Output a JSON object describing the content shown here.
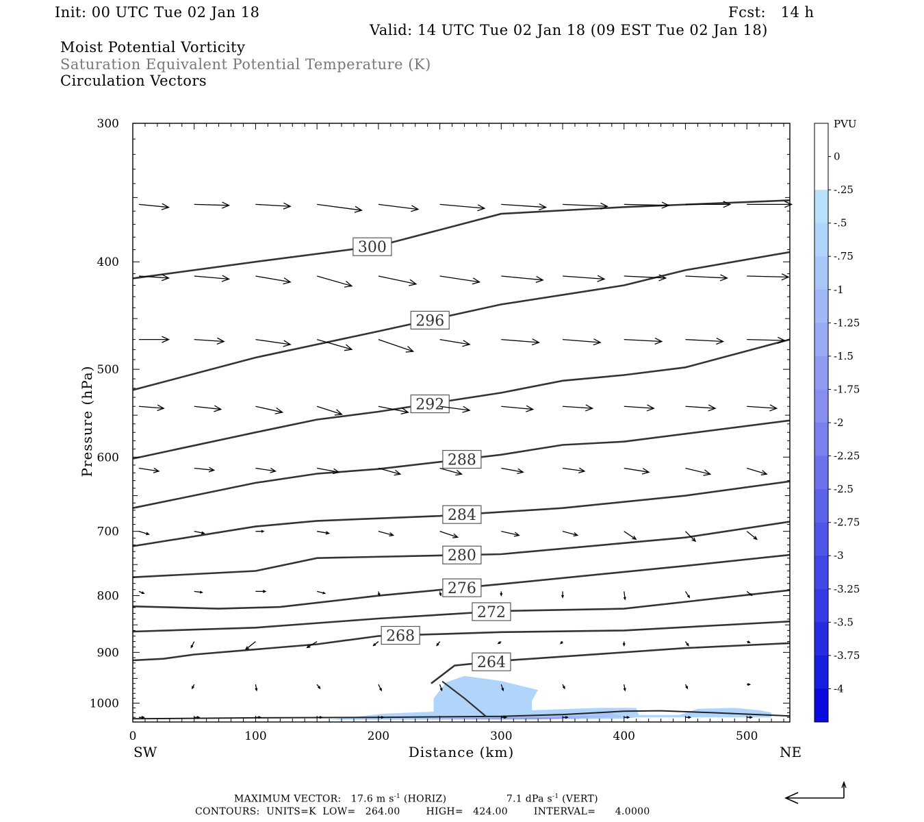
{
  "header": {
    "init": "Init: 00 UTC Tue 02 Jan 18",
    "fcst": "Fcst:   14 h",
    "valid": "Valid: 14 UTC Tue 02 Jan 18 (09 EST Tue 02 Jan 18)",
    "field1": "Moist Potential Vorticity",
    "field2": "Saturation Equivalent Potential Temperature (K)",
    "field3": "Circulation Vectors"
  },
  "footer": {
    "max_label": "MAXIMUM VECTOR:",
    "horiz_value": "17.6 m s",
    "horiz_unit": "(HORIZ)",
    "vert_value": "7.1 dPa s",
    "vert_unit": "(VERT)",
    "exp": "-1",
    "contours": "CONTOURS:  UNITS=K  LOW=   264.00        HIGH=   424.00        INTERVAL=      4.0000"
  },
  "chart_data": {
    "type": "cross-section",
    "xlabel": "Distance (km)",
    "ylabel": "Pressure (hPa)",
    "xlim": [
      0,
      535
    ],
    "ylim": [
      1040,
      300
    ],
    "yscale": "log",
    "x_ticks": [
      0,
      100,
      200,
      300,
      400,
      500
    ],
    "y_ticks": [
      300,
      400,
      500,
      600,
      700,
      800,
      900,
      1000
    ],
    "x_left_label": "SW",
    "x_right_label": "NE",
    "colorbar": {
      "title": "PVU",
      "levels": [
        "0",
        "-.25",
        "-.5",
        "-.75",
        "-1",
        "-1.25",
        "-1.5",
        "-1.75",
        "-2",
        "-2.25",
        "-2.5",
        "-2.75",
        "-3",
        "-3.25",
        "-3.5",
        "-3.75",
        "-4"
      ],
      "colors": [
        "#ffffff",
        "#ffffff",
        "#b8e2fb",
        "#b0d4fa",
        "#a8c6f8",
        "#a0b8f6",
        "#98aaf4",
        "#909cf2",
        "#888ef0",
        "#7a80ee",
        "#6c72ec",
        "#5e64ea",
        "#5056e8",
        "#4248e6",
        "#343ae4",
        "#262ce2",
        "#181ee0",
        "#0a0ade"
      ]
    },
    "theta_contours": [
      {
        "label": "300",
        "label_x": 195,
        "points": [
          [
            0,
            414
          ],
          [
            100,
            400
          ],
          [
            200,
            387
          ],
          [
            300,
            362
          ],
          [
            400,
            357
          ],
          [
            535,
            352
          ]
        ]
      },
      {
        "label": "296",
        "label_x": 242,
        "points": [
          [
            0,
            522
          ],
          [
            100,
            488
          ],
          [
            200,
            462
          ],
          [
            300,
            437
          ],
          [
            400,
            420
          ],
          [
            450,
            407
          ],
          [
            535,
            392
          ]
        ]
      },
      {
        "label": "292",
        "label_x": 242,
        "points": [
          [
            0,
            602
          ],
          [
            100,
            570
          ],
          [
            150,
            555
          ],
          [
            200,
            546
          ],
          [
            300,
            525
          ],
          [
            350,
            512
          ],
          [
            400,
            506
          ],
          [
            450,
            498
          ],
          [
            535,
            470
          ]
        ]
      },
      {
        "label": "288",
        "label_x": 268,
        "points": [
          [
            0,
            667
          ],
          [
            100,
            633
          ],
          [
            150,
            621
          ],
          [
            200,
            615
          ],
          [
            300,
            597
          ],
          [
            350,
            585
          ],
          [
            400,
            581
          ],
          [
            535,
            556
          ]
        ]
      },
      {
        "label": "284",
        "label_x": 268,
        "points": [
          [
            0,
            722
          ],
          [
            100,
            693
          ],
          [
            150,
            685
          ],
          [
            250,
            678
          ],
          [
            350,
            667
          ],
          [
            450,
            650
          ],
          [
            535,
            631
          ]
        ]
      },
      {
        "label": "280",
        "label_x": 268,
        "points": [
          [
            0,
            770
          ],
          [
            100,
            760
          ],
          [
            150,
            740
          ],
          [
            300,
            734
          ],
          [
            450,
            709
          ],
          [
            535,
            686
          ]
        ]
      },
      {
        "label": "276",
        "label_x": 268,
        "points": [
          [
            0,
            818
          ],
          [
            70,
            822
          ],
          [
            120,
            819
          ],
          [
            200,
            800
          ],
          [
            300,
            781
          ],
          [
            450,
            752
          ],
          [
            535,
            735
          ]
        ]
      },
      {
        "label": "272",
        "label_x": 292,
        "points": [
          [
            0,
            862
          ],
          [
            100,
            855
          ],
          [
            200,
            839
          ],
          [
            300,
            826
          ],
          [
            400,
            822
          ],
          [
            535,
            791
          ]
        ]
      },
      {
        "label": "268",
        "label_x": 218,
        "points": [
          [
            0,
            915
          ],
          [
            25,
            912
          ],
          [
            50,
            904
          ],
          [
            150,
            885
          ],
          [
            200,
            870
          ],
          [
            300,
            863
          ],
          [
            400,
            860
          ],
          [
            535,
            844
          ]
        ]
      },
      {
        "label": "264",
        "label_x": 292,
        "points": [
          [
            243,
            960
          ],
          [
            262,
            925
          ],
          [
            300,
            916
          ],
          [
            450,
            892
          ],
          [
            535,
            883
          ]
        ]
      }
    ],
    "theta_264_lower": [
      [
        252,
        956
      ],
      [
        270,
        990
      ],
      [
        288,
        1029
      ]
    ],
    "pv_regions": [
      {
        "level": "-.5",
        "points": [
          [
            160,
            1035
          ],
          [
            205,
            1022
          ],
          [
            245,
            1018
          ],
          [
            245,
            990
          ],
          [
            255,
            958
          ],
          [
            270,
            945
          ],
          [
            300,
            955
          ],
          [
            330,
            973
          ],
          [
            325,
            995
          ],
          [
            325,
            1015
          ],
          [
            380,
            1010
          ],
          [
            410,
            1010
          ],
          [
            412,
            1025
          ],
          [
            445,
            1025
          ],
          [
            460,
            1012
          ],
          [
            490,
            1010
          ],
          [
            510,
            1015
          ],
          [
            520,
            1020
          ],
          [
            520,
            1030
          ],
          [
            410,
            1030
          ],
          [
            400,
            1033
          ],
          [
            300,
            1035
          ],
          [
            160,
            1035
          ]
        ]
      },
      {
        "level": "-.75",
        "points": [
          [
            180,
            1035
          ],
          [
            250,
            1028
          ],
          [
            300,
            1026
          ],
          [
            350,
            1022
          ],
          [
            390,
            1020
          ],
          [
            400,
            1030
          ],
          [
            300,
            1033
          ],
          [
            180,
            1035
          ]
        ]
      },
      {
        "level": "-1.25",
        "points": [
          [
            240,
            1033
          ],
          [
            300,
            1030
          ],
          [
            360,
            1028
          ],
          [
            390,
            1029
          ],
          [
            300,
            1034
          ],
          [
            240,
            1033
          ]
        ]
      },
      {
        "level": "-1.75",
        "points": [
          [
            270,
            1034
          ],
          [
            330,
            1032
          ],
          [
            370,
            1031
          ],
          [
            330,
            1034
          ],
          [
            270,
            1034
          ]
        ]
      }
    ],
    "vectors": [
      {
        "p": 355,
        "xs": [
          5,
          50,
          100,
          150,
          200,
          250,
          300,
          350,
          400,
          450,
          500
        ],
        "u": [
          30,
          35,
          35,
          45,
          40,
          45,
          45,
          45,
          45,
          45,
          45
        ],
        "v": [
          3,
          1,
          2,
          6,
          5,
          4,
          3,
          2,
          1,
          0,
          0
        ]
      },
      {
        "p": 412,
        "xs": [
          5,
          50,
          100,
          150,
          200,
          250,
          300,
          350,
          400,
          450,
          500
        ],
        "u": [
          30,
          35,
          35,
          35,
          38,
          40,
          42,
          42,
          42,
          42,
          42
        ],
        "v": [
          2,
          3,
          6,
          10,
          8,
          6,
          4,
          3,
          2,
          2,
          1
        ]
      },
      {
        "p": 470,
        "xs": [
          5,
          50,
          100,
          150,
          200,
          250,
          300,
          350,
          400,
          450,
          500
        ],
        "u": [
          30,
          30,
          35,
          35,
          35,
          30,
          38,
          38,
          38,
          38,
          38
        ],
        "v": [
          0,
          2,
          5,
          10,
          12,
          5,
          3,
          3,
          2,
          2,
          1
        ]
      },
      {
        "p": 540,
        "xs": [
          5,
          50,
          100,
          150,
          200,
          250,
          300,
          350,
          400,
          450,
          500
        ],
        "u": [
          25,
          27,
          27,
          25,
          30,
          30,
          32,
          30,
          30,
          30,
          30
        ],
        "v": [
          2,
          3,
          6,
          8,
          6,
          4,
          3,
          2,
          2,
          2,
          2
        ]
      },
      {
        "p": 614,
        "xs": [
          5,
          50,
          100,
          150,
          200,
          250,
          300,
          350,
          400,
          450,
          500
        ],
        "u": [
          20,
          20,
          20,
          22,
          22,
          22,
          22,
          22,
          25,
          25,
          20
        ],
        "v": [
          3,
          2,
          3,
          4,
          6,
          6,
          4,
          3,
          4,
          6,
          6
        ]
      },
      {
        "p": 700,
        "xs": [
          5,
          50,
          100,
          150,
          200,
          250,
          300,
          350,
          400,
          450,
          500
        ],
        "u": [
          10,
          10,
          8,
          12,
          15,
          18,
          18,
          15,
          12,
          10,
          10
        ],
        "v": [
          3,
          2,
          0,
          2,
          4,
          6,
          4,
          4,
          8,
          10,
          8
        ]
      },
      {
        "p": 793,
        "xs": [
          5,
          50,
          100,
          150,
          200,
          250,
          300,
          350,
          400,
          450,
          500
        ],
        "u": [
          5,
          8,
          10,
          8,
          1,
          1,
          0,
          0,
          1,
          4,
          5
        ],
        "v": [
          2,
          1,
          0,
          2,
          4,
          4,
          4,
          6,
          8,
          6,
          4
        ]
      },
      {
        "p": 880,
        "xs": [
          50,
          100,
          150,
          200,
          250,
          300,
          350,
          400,
          450,
          500
        ],
        "u": [
          -3,
          -10,
          -10,
          -5,
          -3,
          -3,
          -2,
          0,
          3,
          3
        ],
        "v": [
          6,
          8,
          6,
          4,
          4,
          2,
          2,
          4,
          4,
          1
        ]
      },
      {
        "p": 962,
        "xs": [
          50,
          100,
          150,
          200,
          250,
          300,
          350,
          400,
          450,
          500
        ],
        "u": [
          -2,
          1,
          3,
          3,
          2,
          2,
          2,
          1,
          2,
          3
        ],
        "v": [
          4,
          6,
          4,
          6,
          6,
          6,
          4,
          6,
          4,
          0
        ]
      },
      {
        "p": 1030,
        "xs": [
          5,
          50,
          100,
          150,
          200,
          300,
          350,
          400,
          450,
          500
        ],
        "u": [
          5,
          5,
          5,
          5,
          5,
          5,
          5,
          5,
          5,
          5
        ],
        "v": [
          0,
          0,
          0,
          0,
          0,
          0,
          0,
          0,
          0,
          0
        ]
      }
    ],
    "surface": [
      [
        0,
        1033
      ],
      [
        100,
        1031
      ],
      [
        200,
        1030
      ],
      [
        300,
        1028
      ],
      [
        350,
        1024
      ],
      [
        400,
        1017
      ],
      [
        430,
        1016
      ],
      [
        470,
        1020
      ],
      [
        535,
        1027
      ]
    ]
  }
}
